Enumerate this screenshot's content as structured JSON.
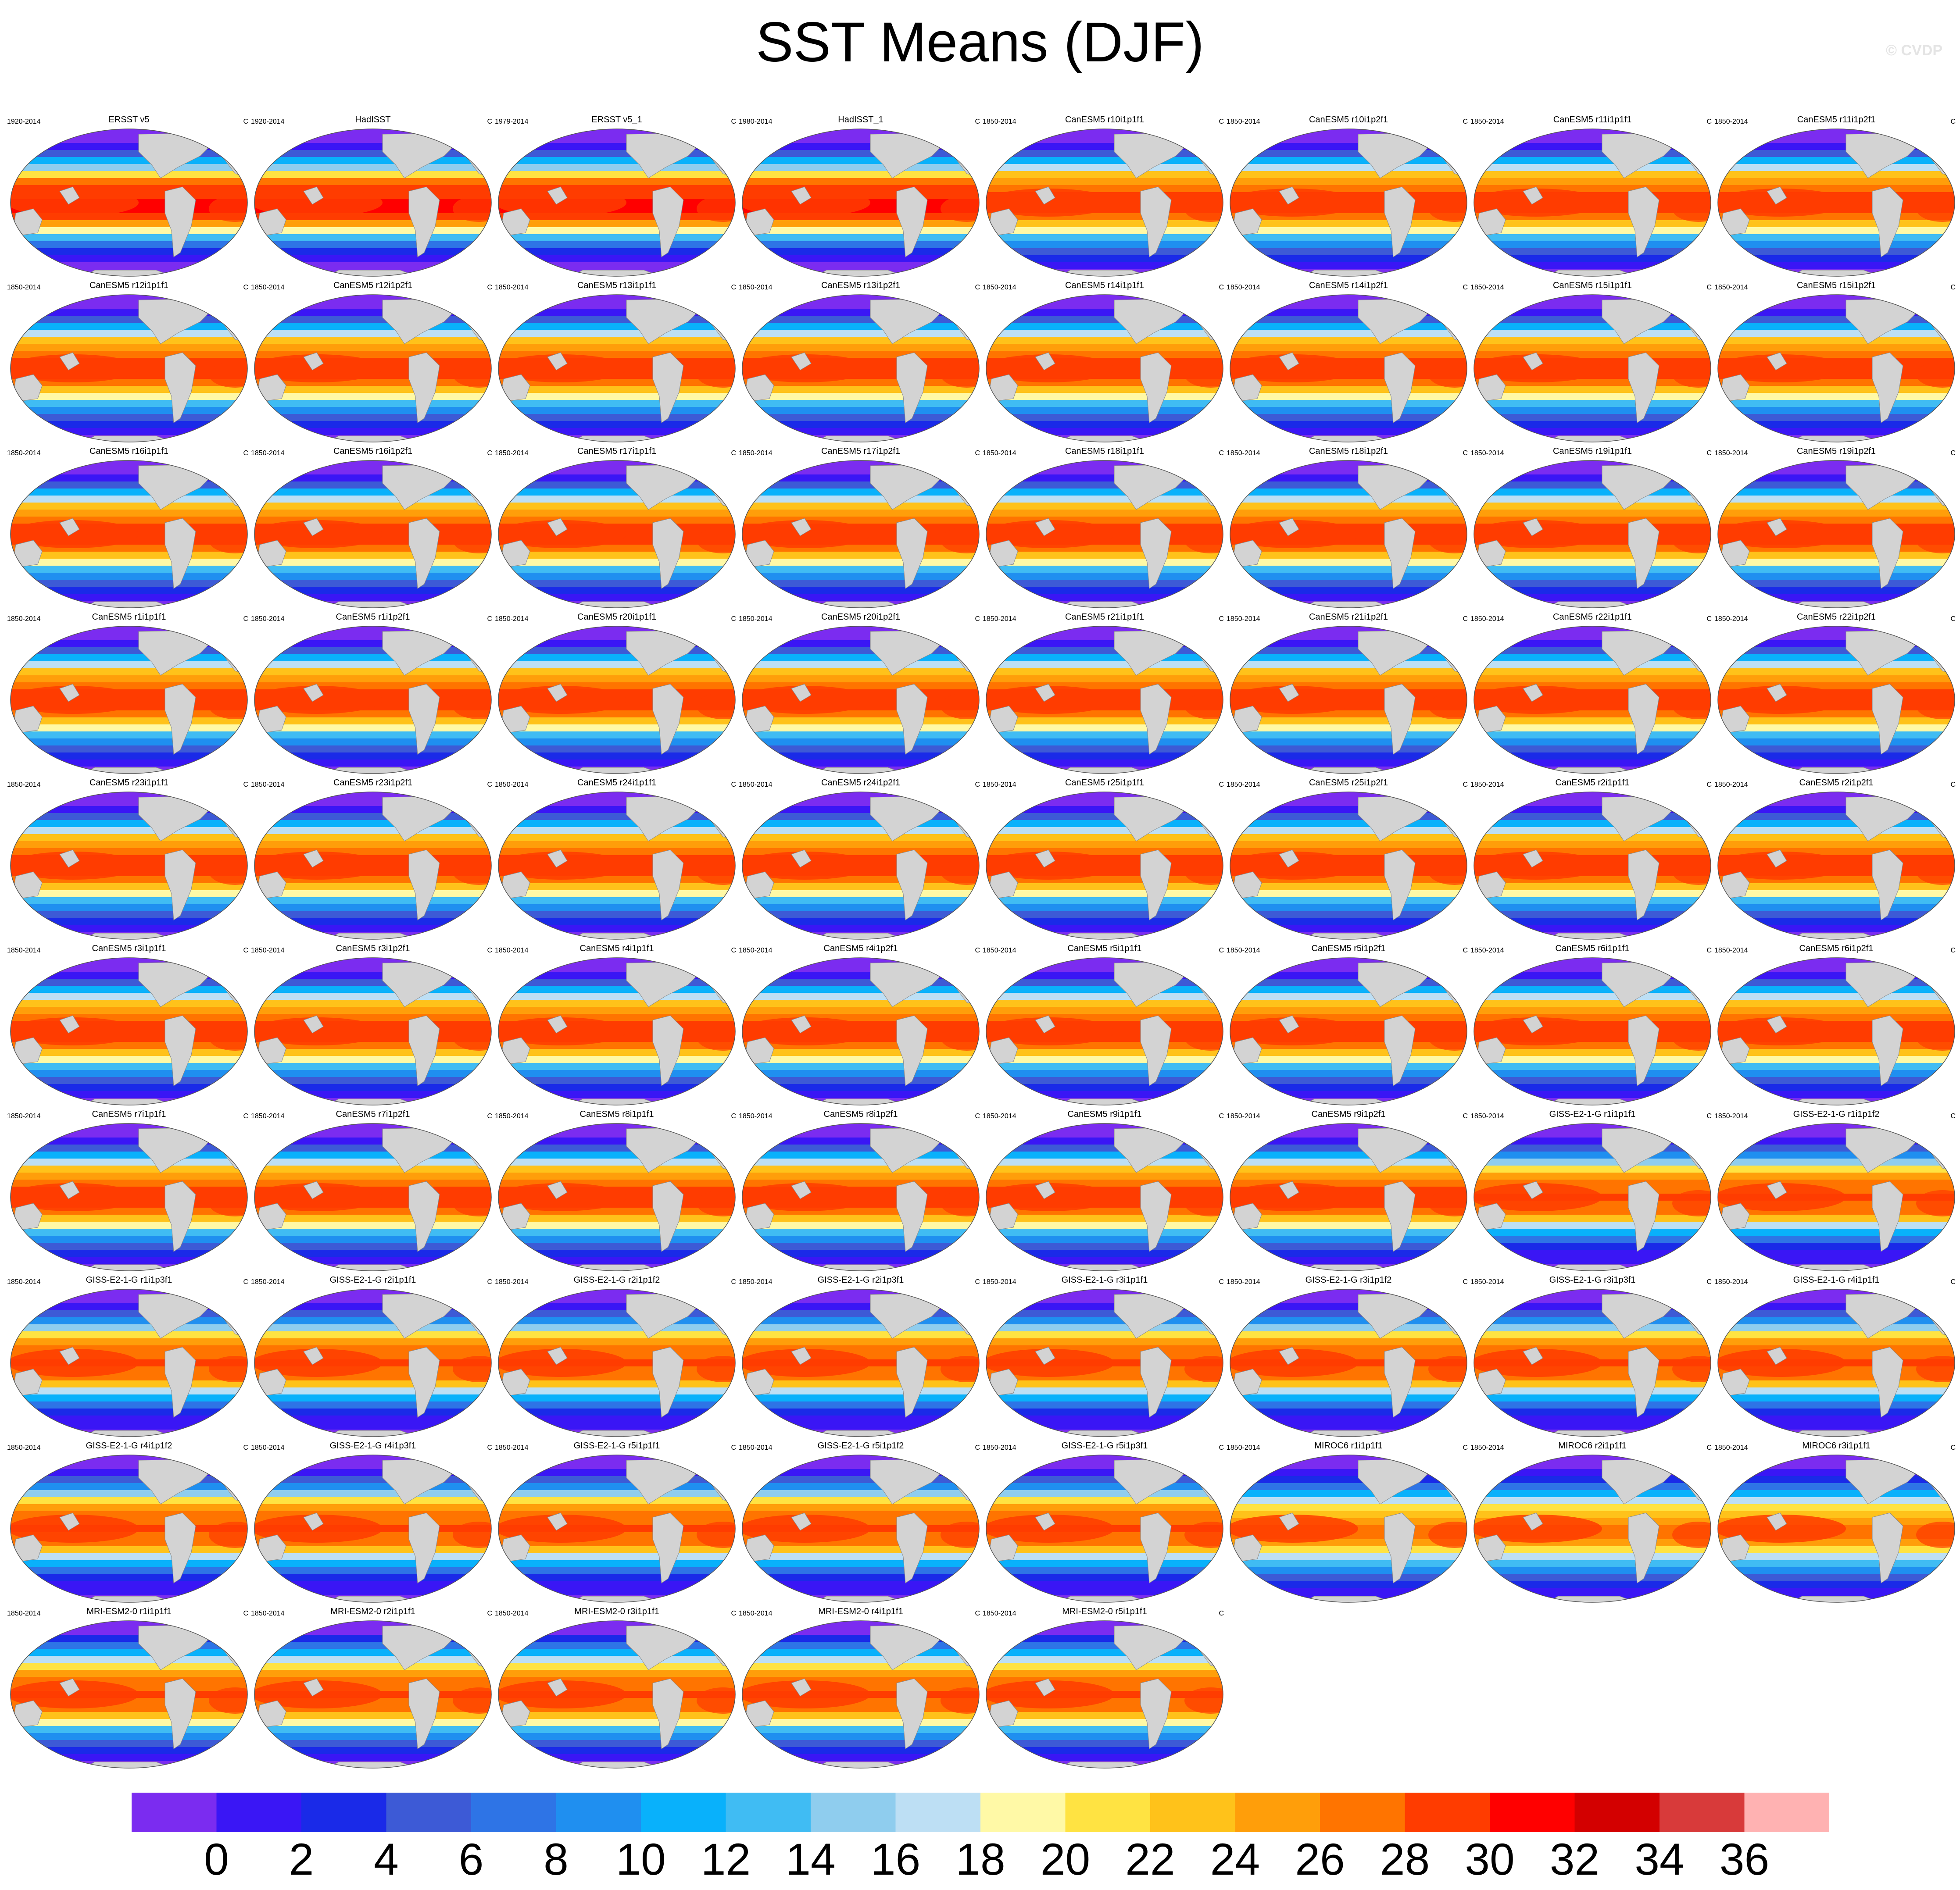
{
  "title": "SST Means (DJF)",
  "watermark": "© CVDP",
  "units": "C",
  "panels": [
    {
      "title": "ERSST v5",
      "range": "1920-2014",
      "family": "obs"
    },
    {
      "title": "HadISST",
      "range": "1920-2014",
      "family": "obs"
    },
    {
      "title": "ERSST v5_1",
      "range": "1979-2014",
      "family": "obs"
    },
    {
      "title": "HadISST_1",
      "range": "1980-2014",
      "family": "obs"
    },
    {
      "title": "CanESM5 r10i1p1f1",
      "range": "1850-2014",
      "family": "canesm"
    },
    {
      "title": "CanESM5 r10i1p2f1",
      "range": "1850-2014",
      "family": "canesm"
    },
    {
      "title": "CanESM5 r11i1p1f1",
      "range": "1850-2014",
      "family": "canesm"
    },
    {
      "title": "CanESM5 r11i1p2f1",
      "range": "1850-2014",
      "family": "canesm"
    },
    {
      "title": "CanESM5 r12i1p1f1",
      "range": "1850-2014",
      "family": "canesm"
    },
    {
      "title": "CanESM5 r12i1p2f1",
      "range": "1850-2014",
      "family": "canesm"
    },
    {
      "title": "CanESM5 r13i1p1f1",
      "range": "1850-2014",
      "family": "canesm"
    },
    {
      "title": "CanESM5 r13i1p2f1",
      "range": "1850-2014",
      "family": "canesm"
    },
    {
      "title": "CanESM5 r14i1p1f1",
      "range": "1850-2014",
      "family": "canesm"
    },
    {
      "title": "CanESM5 r14i1p2f1",
      "range": "1850-2014",
      "family": "canesm"
    },
    {
      "title": "CanESM5 r15i1p1f1",
      "range": "1850-2014",
      "family": "canesm"
    },
    {
      "title": "CanESM5 r15i1p2f1",
      "range": "1850-2014",
      "family": "canesm"
    },
    {
      "title": "CanESM5 r16i1p1f1",
      "range": "1850-2014",
      "family": "canesm"
    },
    {
      "title": "CanESM5 r16i1p2f1",
      "range": "1850-2014",
      "family": "canesm"
    },
    {
      "title": "CanESM5 r17i1p1f1",
      "range": "1850-2014",
      "family": "canesm"
    },
    {
      "title": "CanESM5 r17i1p2f1",
      "range": "1850-2014",
      "family": "canesm"
    },
    {
      "title": "CanESM5 r18i1p1f1",
      "range": "1850-2014",
      "family": "canesm"
    },
    {
      "title": "CanESM5 r18i1p2f1",
      "range": "1850-2014",
      "family": "canesm"
    },
    {
      "title": "CanESM5 r19i1p1f1",
      "range": "1850-2014",
      "family": "canesm"
    },
    {
      "title": "CanESM5 r19i1p2f1",
      "range": "1850-2014",
      "family": "canesm"
    },
    {
      "title": "CanESM5 r1i1p1f1",
      "range": "1850-2014",
      "family": "canesm"
    },
    {
      "title": "CanESM5 r1i1p2f1",
      "range": "1850-2014",
      "family": "canesm"
    },
    {
      "title": "CanESM5 r20i1p1f1",
      "range": "1850-2014",
      "family": "canesm"
    },
    {
      "title": "CanESM5 r20i1p2f1",
      "range": "1850-2014",
      "family": "canesm"
    },
    {
      "title": "CanESM5 r21i1p1f1",
      "range": "1850-2014",
      "family": "canesm"
    },
    {
      "title": "CanESM5 r21i1p2f1",
      "range": "1850-2014",
      "family": "canesm"
    },
    {
      "title": "CanESM5 r22i1p1f1",
      "range": "1850-2014",
      "family": "canesm"
    },
    {
      "title": "CanESM5 r22i1p2f1",
      "range": "1850-2014",
      "family": "canesm"
    },
    {
      "title": "CanESM5 r23i1p1f1",
      "range": "1850-2014",
      "family": "canesm"
    },
    {
      "title": "CanESM5 r23i1p2f1",
      "range": "1850-2014",
      "family": "canesm"
    },
    {
      "title": "CanESM5 r24i1p1f1",
      "range": "1850-2014",
      "family": "canesm"
    },
    {
      "title": "CanESM5 r24i1p2f1",
      "range": "1850-2014",
      "family": "canesm"
    },
    {
      "title": "CanESM5 r25i1p1f1",
      "range": "1850-2014",
      "family": "canesm"
    },
    {
      "title": "CanESM5 r25i1p2f1",
      "range": "1850-2014",
      "family": "canesm"
    },
    {
      "title": "CanESM5 r2i1p1f1",
      "range": "1850-2014",
      "family": "canesm"
    },
    {
      "title": "CanESM5 r2i1p2f1",
      "range": "1850-2014",
      "family": "canesm"
    },
    {
      "title": "CanESM5 r3i1p1f1",
      "range": "1850-2014",
      "family": "canesm"
    },
    {
      "title": "CanESM5 r3i1p2f1",
      "range": "1850-2014",
      "family": "canesm"
    },
    {
      "title": "CanESM5 r4i1p1f1",
      "range": "1850-2014",
      "family": "canesm"
    },
    {
      "title": "CanESM5 r4i1p2f1",
      "range": "1850-2014",
      "family": "canesm"
    },
    {
      "title": "CanESM5 r5i1p1f1",
      "range": "1850-2014",
      "family": "canesm"
    },
    {
      "title": "CanESM5 r5i1p2f1",
      "range": "1850-2014",
      "family": "canesm"
    },
    {
      "title": "CanESM5 r6i1p1f1",
      "range": "1850-2014",
      "family": "canesm"
    },
    {
      "title": "CanESM5 r6i1p2f1",
      "range": "1850-2014",
      "family": "canesm"
    },
    {
      "title": "CanESM5 r7i1p1f1",
      "range": "1850-2014",
      "family": "canesm"
    },
    {
      "title": "CanESM5 r7i1p2f1",
      "range": "1850-2014",
      "family": "canesm"
    },
    {
      "title": "CanESM5 r8i1p1f1",
      "range": "1850-2014",
      "family": "canesm"
    },
    {
      "title": "CanESM5 r8i1p2f1",
      "range": "1850-2014",
      "family": "canesm"
    },
    {
      "title": "CanESM5 r9i1p1f1",
      "range": "1850-2014",
      "family": "canesm"
    },
    {
      "title": "CanESM5 r9i1p2f1",
      "range": "1850-2014",
      "family": "canesm"
    },
    {
      "title": "GISS-E2-1-G r1i1p1f1",
      "range": "1850-2014",
      "family": "giss"
    },
    {
      "title": "GISS-E2-1-G r1i1p1f2",
      "range": "1850-2014",
      "family": "giss"
    },
    {
      "title": "GISS-E2-1-G r1i1p3f1",
      "range": "1850-2014",
      "family": "giss"
    },
    {
      "title": "GISS-E2-1-G r2i1p1f1",
      "range": "1850-2014",
      "family": "giss"
    },
    {
      "title": "GISS-E2-1-G r2i1p1f2",
      "range": "1850-2014",
      "family": "giss"
    },
    {
      "title": "GISS-E2-1-G r2i1p3f1",
      "range": "1850-2014",
      "family": "giss"
    },
    {
      "title": "GISS-E2-1-G r3i1p1f1",
      "range": "1850-2014",
      "family": "giss"
    },
    {
      "title": "GISS-E2-1-G r3i1p1f2",
      "range": "1850-2014",
      "family": "giss"
    },
    {
      "title": "GISS-E2-1-G r3i1p3f1",
      "range": "1850-2014",
      "family": "giss"
    },
    {
      "title": "GISS-E2-1-G r4i1p1f1",
      "range": "1850-2014",
      "family": "giss"
    },
    {
      "title": "GISS-E2-1-G r4i1p1f2",
      "range": "1850-2014",
      "family": "giss"
    },
    {
      "title": "GISS-E2-1-G r4i1p3f1",
      "range": "1850-2014",
      "family": "giss"
    },
    {
      "title": "GISS-E2-1-G r5i1p1f1",
      "range": "1850-2014",
      "family": "giss"
    },
    {
      "title": "GISS-E2-1-G r5i1p1f2",
      "range": "1850-2014",
      "family": "giss"
    },
    {
      "title": "GISS-E2-1-G r5i1p3f1",
      "range": "1850-2014",
      "family": "giss"
    },
    {
      "title": "MIROC6 r1i1p1f1",
      "range": "1850-2014",
      "family": "miroc"
    },
    {
      "title": "MIROC6 r2i1p1f1",
      "range": "1850-2014",
      "family": "miroc"
    },
    {
      "title": "MIROC6 r3i1p1f1",
      "range": "1850-2014",
      "family": "miroc"
    },
    {
      "title": "MRI-ESM2-0 r1i1p1f1",
      "range": "1850-2014",
      "family": "mri"
    },
    {
      "title": "MRI-ESM2-0 r2i1p1f1",
      "range": "1850-2014",
      "family": "mri"
    },
    {
      "title": "MRI-ESM2-0 r3i1p1f1",
      "range": "1850-2014",
      "family": "mri"
    },
    {
      "title": "MRI-ESM2-0 r4i1p1f1",
      "range": "1850-2014",
      "family": "mri"
    },
    {
      "title": "MRI-ESM2-0 r5i1p1f1",
      "range": "1850-2014",
      "family": "mri"
    }
  ],
  "colorbar": {
    "levels": [
      0,
      2,
      4,
      6,
      8,
      10,
      12,
      14,
      16,
      18,
      20,
      22,
      24,
      26,
      28,
      30,
      32,
      34,
      36
    ],
    "colors": [
      "#7b2cf0",
      "#3a16f5",
      "#1a2ae8",
      "#3d5ad6",
      "#2e74e6",
      "#1f8ff0",
      "#09b1fb",
      "#40bcf3",
      "#8fcdee",
      "#bddff4",
      "#fff9a6",
      "#ffe342",
      "#ffc21a",
      "#ff9e0a",
      "#ff7400",
      "#ff3c00",
      "#ff0000",
      "#d30000",
      "#d83a3a",
      "#ffb2b2"
    ]
  },
  "land_color": "#d3d3d3"
}
